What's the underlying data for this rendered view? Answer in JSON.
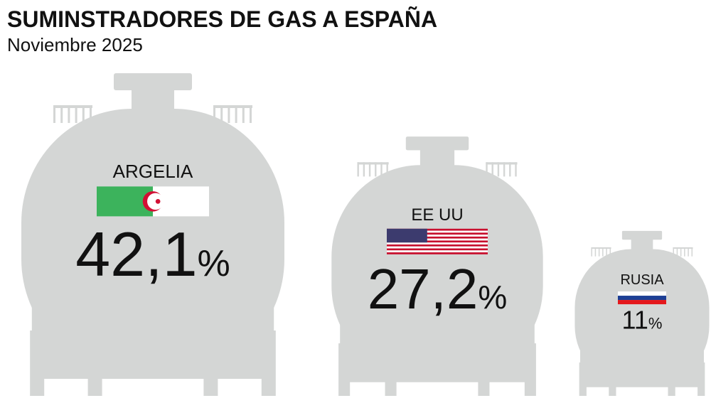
{
  "chart_data": {
    "type": "tank",
    "title": "SUMINSTRADORES DE GAS A ESPAÑA",
    "subtitle": "Noviembre 2025",
    "categories": [
      "ARGELIA",
      "EE UU",
      "RUSIA"
    ],
    "values": [
      42.1,
      27.2,
      11
    ],
    "value_labels": [
      "42,1%",
      "27,2%",
      "11%"
    ],
    "color": "#d4d6d5"
  }
}
